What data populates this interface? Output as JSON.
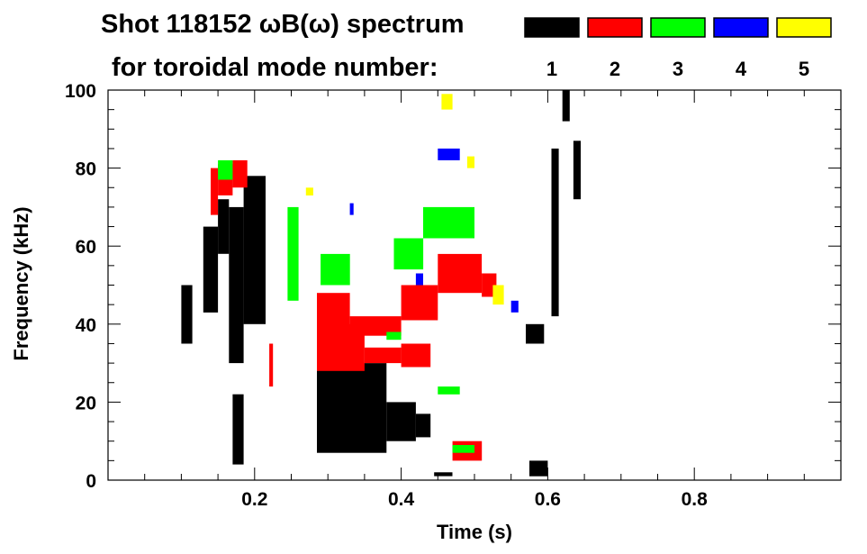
{
  "title_line1": "Shot 118152 ωB(ω) spectrum",
  "title_line2": "for toroidal mode number:",
  "legend": [
    {
      "label": "1",
      "color": "#000000"
    },
    {
      "label": "2",
      "color": "#ff0000"
    },
    {
      "label": "3",
      "color": "#00ff00"
    },
    {
      "label": "4",
      "color": "#0000ff"
    },
    {
      "label": "5",
      "color": "#ffff00"
    }
  ],
  "chart_data": {
    "type": "heatmap",
    "title": "Shot 118152 ωB(ω) spectrum",
    "xlabel": "Time (s)",
    "ylabel": "Frequency (kHz)",
    "xlim": [
      0.0,
      1.0
    ],
    "ylim": [
      0,
      100
    ],
    "x_ticks": [
      0.2,
      0.4,
      0.6,
      0.8
    ],
    "y_ticks": [
      0,
      20,
      40,
      60,
      80,
      100
    ],
    "series": [
      {
        "name": "1",
        "color": "#000000",
        "segments": [
          {
            "t0": 0.1,
            "t1": 0.115,
            "f0": 35,
            "f1": 50
          },
          {
            "t0": 0.13,
            "t1": 0.15,
            "f0": 43,
            "f1": 65
          },
          {
            "t0": 0.15,
            "t1": 0.165,
            "f0": 58,
            "f1": 72
          },
          {
            "t0": 0.165,
            "t1": 0.185,
            "f0": 30,
            "f1": 70
          },
          {
            "t0": 0.185,
            "t1": 0.215,
            "f0": 40,
            "f1": 78
          },
          {
            "t0": 0.17,
            "t1": 0.185,
            "f0": 4,
            "f1": 22
          },
          {
            "t0": 0.285,
            "t1": 0.38,
            "f0": 7,
            "f1": 30
          },
          {
            "t0": 0.38,
            "t1": 0.42,
            "f0": 10,
            "f1": 20
          },
          {
            "t0": 0.42,
            "t1": 0.44,
            "f0": 11,
            "f1": 17
          },
          {
            "t0": 0.445,
            "t1": 0.47,
            "f0": 1,
            "f1": 2
          },
          {
            "t0": 0.57,
            "t1": 0.595,
            "f0": 35,
            "f1": 40
          },
          {
            "t0": 0.575,
            "t1": 0.6,
            "f0": 1,
            "f1": 5
          },
          {
            "t0": 0.605,
            "t1": 0.615,
            "f0": 42,
            "f1": 85
          },
          {
            "t0": 0.62,
            "t1": 0.63,
            "f0": 92,
            "f1": 100
          },
          {
            "t0": 0.635,
            "t1": 0.645,
            "f0": 72,
            "f1": 87
          }
        ]
      },
      {
        "name": "2",
        "color": "#ff0000",
        "segments": [
          {
            "t0": 0.14,
            "t1": 0.15,
            "f0": 68,
            "f1": 80
          },
          {
            "t0": 0.15,
            "t1": 0.17,
            "f0": 73,
            "f1": 81
          },
          {
            "t0": 0.17,
            "t1": 0.19,
            "f0": 75,
            "f1": 82
          },
          {
            "t0": 0.22,
            "t1": 0.225,
            "f0": 24,
            "f1": 35
          },
          {
            "t0": 0.285,
            "t1": 0.33,
            "f0": 38,
            "f1": 48
          },
          {
            "t0": 0.33,
            "t1": 0.4,
            "f0": 37,
            "f1": 42
          },
          {
            "t0": 0.4,
            "t1": 0.45,
            "f0": 41,
            "f1": 50
          },
          {
            "t0": 0.45,
            "t1": 0.51,
            "f0": 48,
            "f1": 58
          },
          {
            "t0": 0.51,
            "t1": 0.53,
            "f0": 47,
            "f1": 53
          },
          {
            "t0": 0.285,
            "t1": 0.35,
            "f0": 28,
            "f1": 40
          },
          {
            "t0": 0.35,
            "t1": 0.4,
            "f0": 30,
            "f1": 34
          },
          {
            "t0": 0.4,
            "t1": 0.44,
            "f0": 29,
            "f1": 35
          },
          {
            "t0": 0.47,
            "t1": 0.51,
            "f0": 5,
            "f1": 10
          }
        ]
      },
      {
        "name": "3",
        "color": "#00ff00",
        "segments": [
          {
            "t0": 0.15,
            "t1": 0.17,
            "f0": 77,
            "f1": 82
          },
          {
            "t0": 0.245,
            "t1": 0.26,
            "f0": 46,
            "f1": 70
          },
          {
            "t0": 0.29,
            "t1": 0.33,
            "f0": 50,
            "f1": 58
          },
          {
            "t0": 0.39,
            "t1": 0.43,
            "f0": 54,
            "f1": 62
          },
          {
            "t0": 0.43,
            "t1": 0.5,
            "f0": 62,
            "f1": 70
          },
          {
            "t0": 0.38,
            "t1": 0.4,
            "f0": 36,
            "f1": 38
          },
          {
            "t0": 0.45,
            "t1": 0.48,
            "f0": 22,
            "f1": 24
          },
          {
            "t0": 0.47,
            "t1": 0.5,
            "f0": 7,
            "f1": 9
          }
        ]
      },
      {
        "name": "4",
        "color": "#0000ff",
        "segments": [
          {
            "t0": 0.45,
            "t1": 0.48,
            "f0": 82,
            "f1": 85
          },
          {
            "t0": 0.42,
            "t1": 0.43,
            "f0": 50,
            "f1": 53
          },
          {
            "t0": 0.33,
            "t1": 0.335,
            "f0": 68,
            "f1": 71
          },
          {
            "t0": 0.55,
            "t1": 0.56,
            "f0": 43,
            "f1": 46
          }
        ]
      },
      {
        "name": "5",
        "color": "#ffff00",
        "segments": [
          {
            "t0": 0.455,
            "t1": 0.47,
            "f0": 95,
            "f1": 99
          },
          {
            "t0": 0.49,
            "t1": 0.5,
            "f0": 80,
            "f1": 83
          },
          {
            "t0": 0.525,
            "t1": 0.54,
            "f0": 45,
            "f1": 50
          },
          {
            "t0": 0.27,
            "t1": 0.28,
            "f0": 73,
            "f1": 75
          }
        ]
      }
    ]
  }
}
